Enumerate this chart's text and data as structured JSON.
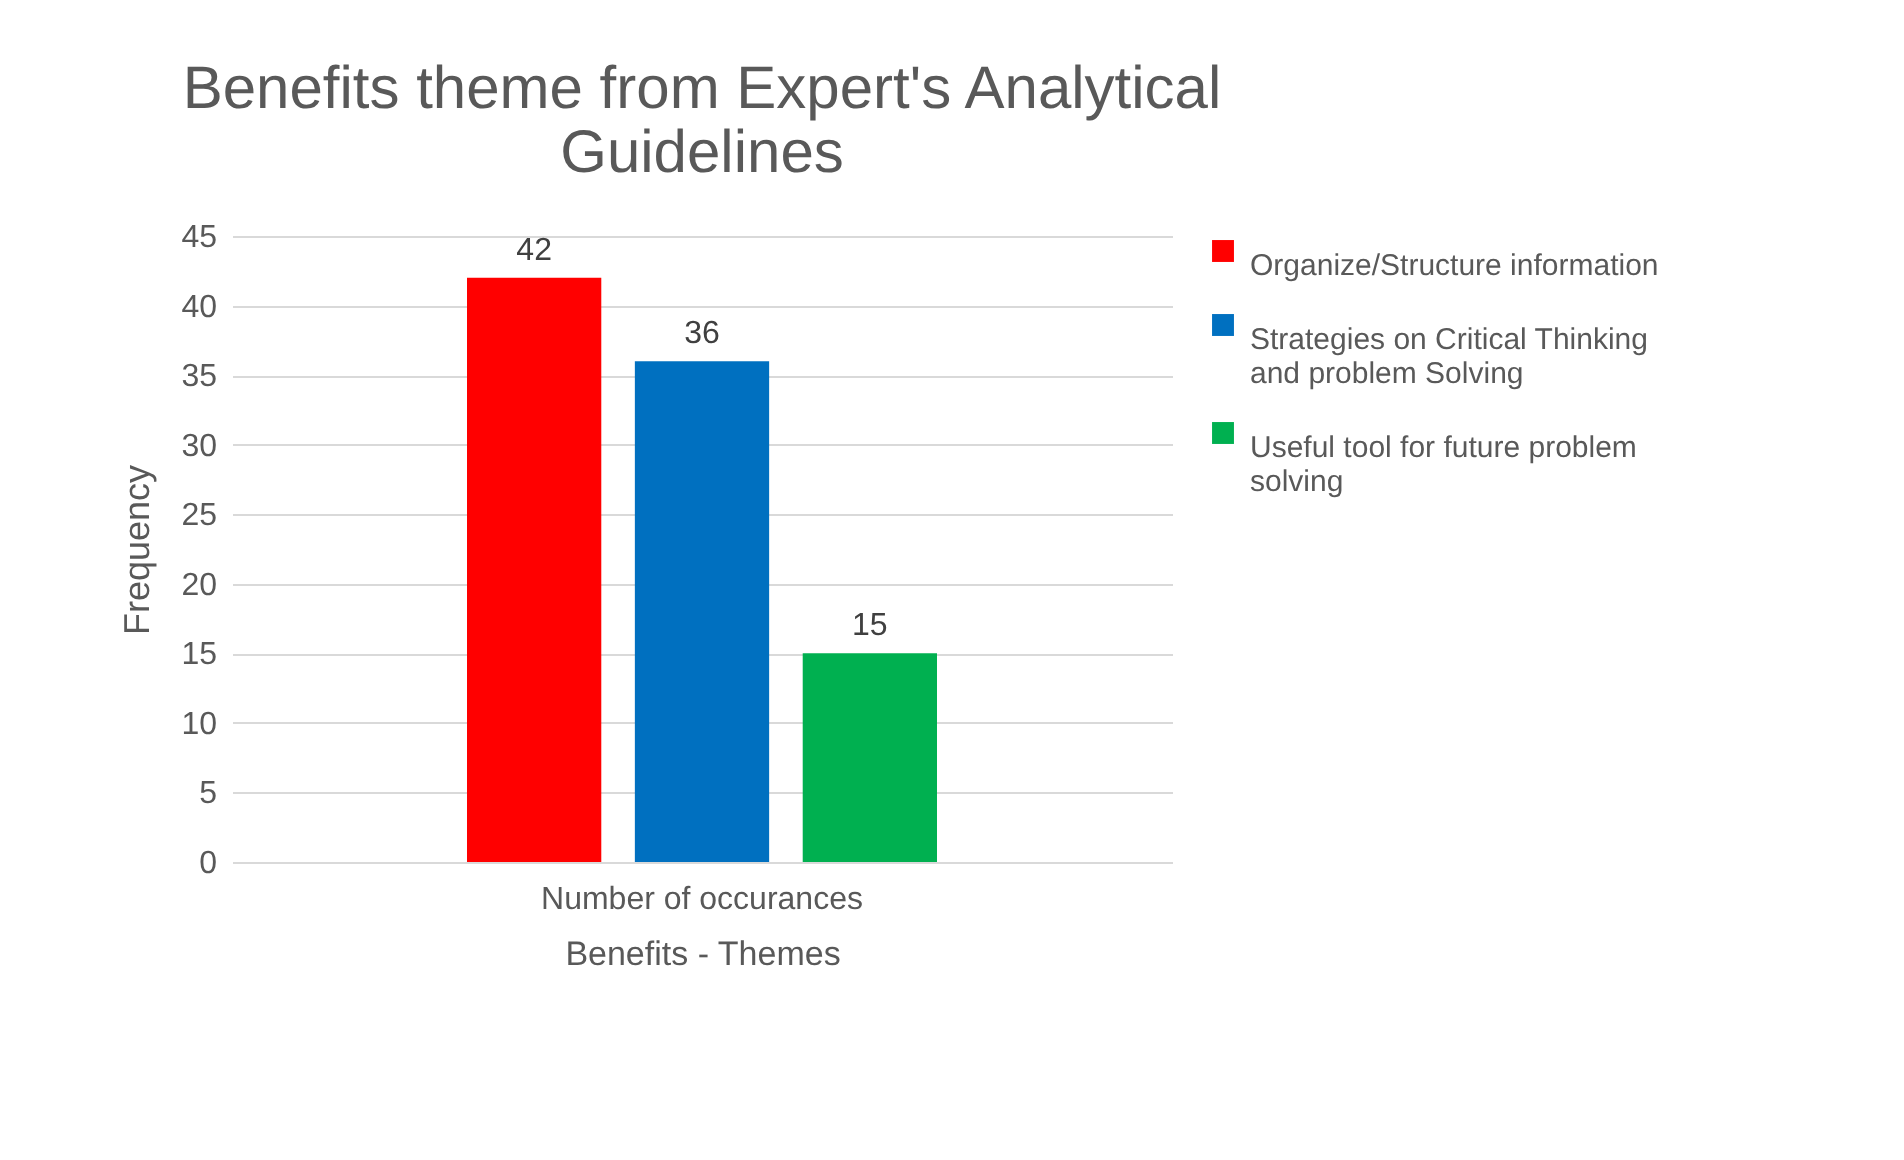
{
  "chart_data": {
    "type": "bar",
    "title": "Benefits theme  from Expert's Analytical Guidelines",
    "xlabel": "Benefits - Themes",
    "ylabel": "Frequency",
    "categories": [
      "Number of occurances"
    ],
    "series": [
      {
        "name": "Organize/Structure information",
        "color": "#ff0000",
        "values": [
          42
        ]
      },
      {
        "name": "Strategies on Critical Thinking and problem Solving",
        "color": "#0070c0",
        "values": [
          36
        ]
      },
      {
        "name": "Useful tool for future problem solving",
        "color": "#00b050",
        "values": [
          15
        ]
      }
    ],
    "ylim": [
      0,
      45
    ],
    "yticks": [
      0,
      5,
      10,
      15,
      20,
      25,
      30,
      35,
      40,
      45
    ],
    "grid": "y",
    "legend": "right",
    "data_labels": true
  }
}
